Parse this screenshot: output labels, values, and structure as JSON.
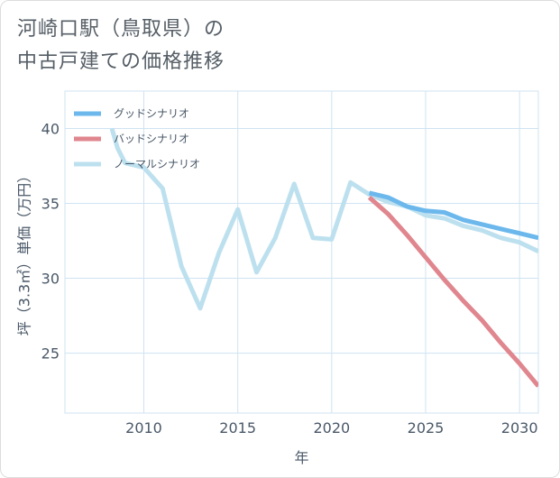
{
  "title": {
    "line1": "河崎口駅（鳥取県）の",
    "line2": "中古戸建ての価格推移"
  },
  "colors": {
    "good": "#6cb8ec",
    "bad": "#e0868e",
    "normal": "#bde0ef",
    "grid": "#cfe3f2",
    "axis": "#4a5868"
  },
  "chart_data": {
    "type": "line",
    "title": "河崎口駅（鳥取県）の中古戸建ての価格推移",
    "xlabel": "年",
    "ylabel": "坪（3.3㎡）単価（万円）",
    "xlim": [
      2005.8,
      2031.0
    ],
    "ylim": [
      21.0,
      42.5
    ],
    "xticks": [
      2010,
      2015,
      2020,
      2025,
      2030
    ],
    "yticks": [
      25,
      30,
      35,
      40
    ],
    "xtick_labels": [
      "2010",
      "2015",
      "2020",
      "2025",
      "2030"
    ],
    "ytick_labels": [
      "25",
      "30",
      "35",
      "40"
    ],
    "legend_position": "top-left",
    "series": [
      {
        "name": "グッドシナリオ",
        "color": "#6cb8ec",
        "x": [
          2022,
          2023,
          2024,
          2025,
          2026,
          2027,
          2028,
          2029,
          2030,
          2031
        ],
        "y": [
          35.7,
          35.4,
          34.8,
          34.5,
          34.4,
          33.9,
          33.6,
          33.3,
          33.0,
          32.7
        ]
      },
      {
        "name": "バッドシナリオ",
        "color": "#e0868e",
        "x": [
          2022,
          2023,
          2024,
          2025,
          2026,
          2027,
          2028,
          2029,
          2030,
          2031
        ],
        "y": [
          35.4,
          34.3,
          32.9,
          31.4,
          29.9,
          28.5,
          27.2,
          25.7,
          24.3,
          22.8
        ]
      },
      {
        "name": "ノーマルシナリオ",
        "color": "#bde0ef",
        "x": [
          2008.3,
          2008.6,
          2009,
          2010,
          2011,
          2012,
          2013,
          2014,
          2015,
          2016,
          2017,
          2018,
          2019,
          2020,
          2021,
          2022,
          2023,
          2024,
          2025,
          2026,
          2027,
          2028,
          2029,
          2030,
          2031
        ],
        "y": [
          40.0,
          38.7,
          37.7,
          37.4,
          36.0,
          30.8,
          28.0,
          31.7,
          34.6,
          30.4,
          32.7,
          36.3,
          32.7,
          32.6,
          36.4,
          35.6,
          35.1,
          34.8,
          34.2,
          34.0,
          33.5,
          33.2,
          32.7,
          32.4,
          31.8
        ]
      }
    ]
  }
}
